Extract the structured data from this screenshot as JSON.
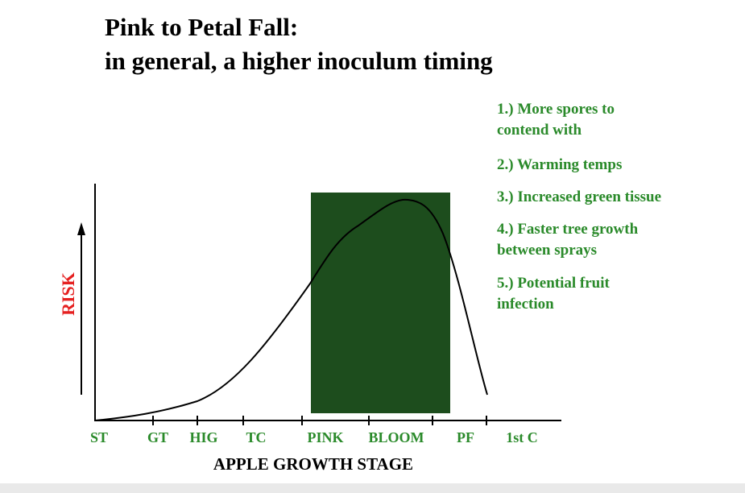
{
  "header": {
    "title_lines": [
      "Pink to Petal Fall:",
      "in general, a higher inoculum timing"
    ]
  },
  "factors": [
    [
      "1.) More spores to",
      "contend with"
    ],
    [
      "2.) Warming temps"
    ],
    [
      "3.) Increased green tissue"
    ],
    [
      "4.) Faster tree growth",
      "between sprays"
    ],
    [
      "5.) Potential fruit",
      "infection"
    ]
  ],
  "diagram": {
    "y_label": "RISK",
    "x_label": "APPLE GROWTH STAGE",
    "stages": [
      "ST",
      "GT",
      "HIG",
      "TC",
      "PINK",
      "BLOOM",
      "PF",
      "1st C"
    ]
  }
}
